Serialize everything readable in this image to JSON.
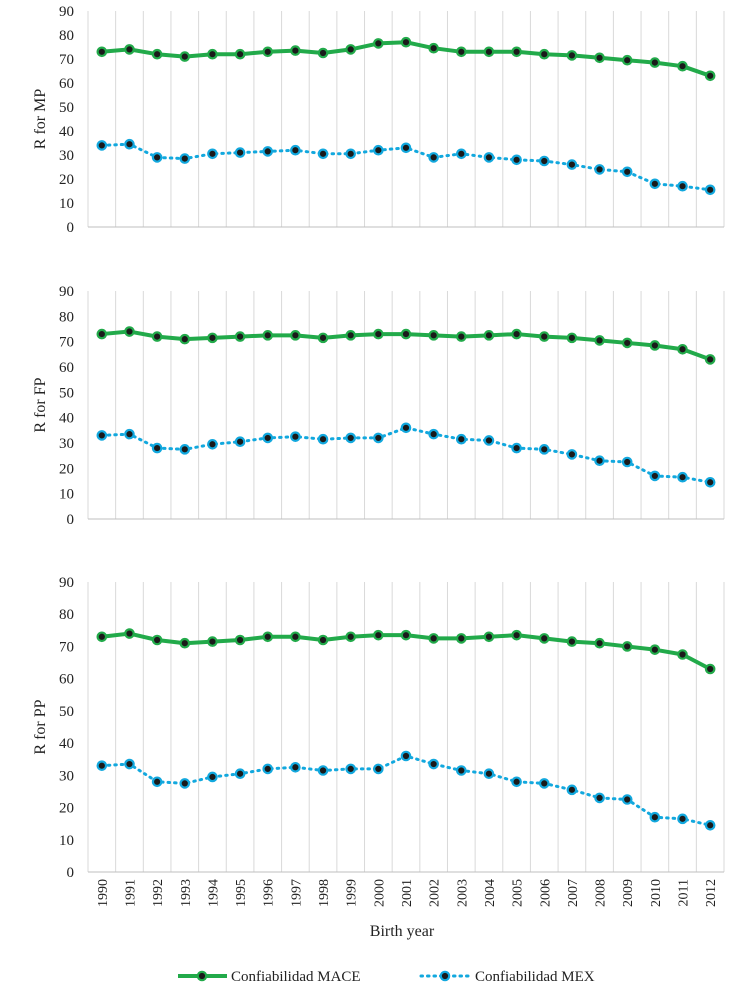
{
  "colors": {
    "mace_line": "#22aa4a",
    "mex_line": "#12a8de",
    "marker_fill": "#1a1a1a",
    "gridline": "#d9d9d9",
    "axis_text": "#222222"
  },
  "chart_data": {
    "type": "line",
    "categories": [
      "1990",
      "1991",
      "1992",
      "1993",
      "1994",
      "1995",
      "1996",
      "1997",
      "1998",
      "1999",
      "2000",
      "2001",
      "2002",
      "2003",
      "2004",
      "2005",
      "2006",
      "2007",
      "2008",
      "2009",
      "2010",
      "2011",
      "2012"
    ],
    "xlabel": "Birth year",
    "ylim": [
      0,
      90
    ],
    "yticks": [
      0,
      10,
      20,
      30,
      40,
      50,
      60,
      70,
      80,
      90
    ],
    "grid": "vertical",
    "legend": {
      "position": "bottom-center",
      "entries": [
        "Confiabilidad MACE",
        "Confiabilidad MEX"
      ]
    },
    "panels": [
      {
        "ylabel": "R for MP",
        "series": [
          {
            "name": "Confiabilidad MACE",
            "style": "solid",
            "values": [
              73,
              74,
              72,
              71,
              72,
              72,
              73,
              73.5,
              72.5,
              74,
              76.5,
              77,
              74.5,
              73,
              73,
              73,
              72,
              71.5,
              70.5,
              69.5,
              68.5,
              67,
              63
            ]
          },
          {
            "name": "Confiabilidad MEX",
            "style": "dotted",
            "values": [
              34,
              34.5,
              29,
              28.5,
              30.5,
              31,
              31.5,
              32,
              30.5,
              30.5,
              32,
              33,
              29,
              30.5,
              29,
              28,
              27.5,
              26,
              24,
              23,
              18,
              17,
              15.5
            ]
          }
        ]
      },
      {
        "ylabel": "R for FP",
        "series": [
          {
            "name": "Confiabilidad MACE",
            "style": "solid",
            "values": [
              73,
              74,
              72,
              71,
              71.5,
              72,
              72.5,
              72.5,
              71.5,
              72.5,
              73,
              73,
              72.5,
              72,
              72.5,
              73,
              72,
              71.5,
              70.5,
              69.5,
              68.5,
              67,
              63
            ]
          },
          {
            "name": "Confiabilidad MEX",
            "style": "dotted",
            "values": [
              33,
              33.5,
              28,
              27.5,
              29.5,
              30.5,
              32,
              32.5,
              31.5,
              32,
              32,
              36,
              33.5,
              31.5,
              31,
              28,
              27.5,
              25.5,
              23,
              22.5,
              17,
              16.5,
              14.5
            ]
          }
        ]
      },
      {
        "ylabel": "R for PP",
        "series": [
          {
            "name": "Confiabilidad MACE",
            "style": "solid",
            "values": [
              73,
              74,
              72,
              71,
              71.5,
              72,
              73,
              73,
              72,
              73,
              73.5,
              73.5,
              72.5,
              72.5,
              73,
              73.5,
              72.5,
              71.5,
              71,
              70,
              69,
              67.5,
              63
            ]
          },
          {
            "name": "Confiabilidad MEX",
            "style": "dotted",
            "values": [
              33,
              33.5,
              28,
              27.5,
              29.5,
              30.5,
              32,
              32.5,
              31.5,
              32,
              32,
              36,
              33.5,
              31.5,
              30.5,
              28,
              27.5,
              25.5,
              23,
              22.5,
              17,
              16.5,
              14.5
            ]
          }
        ]
      }
    ]
  }
}
